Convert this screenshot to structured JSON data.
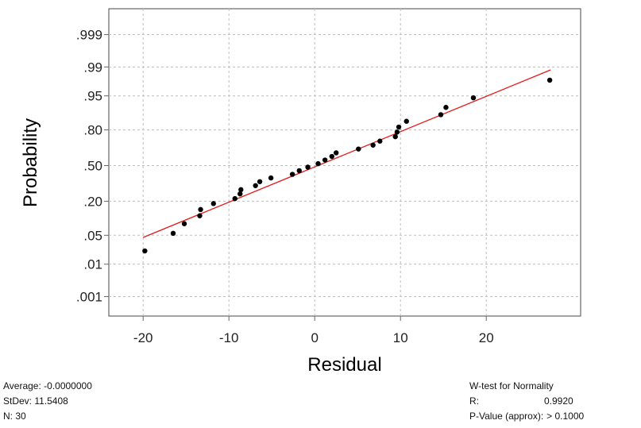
{
  "chart_data": {
    "type": "scatter",
    "title": "",
    "xlabel": "Residual",
    "ylabel": "Probability",
    "xlim": [
      -24,
      31
    ],
    "xticks": [
      -20,
      -10,
      0,
      10,
      20
    ],
    "xtick_labels": [
      "-20",
      "-10",
      "0",
      "10",
      "20"
    ],
    "y_scale": "normal-probability",
    "yticks": [
      0.001,
      0.01,
      0.05,
      0.2,
      0.5,
      0.8,
      0.95,
      0.99,
      0.999
    ],
    "ytick_labels": [
      ".001",
      ".01",
      ".05",
      ".20",
      ".50",
      ".80",
      ".95",
      ".99",
      ".999"
    ],
    "grid": true,
    "line_color": "#e41a1c",
    "point_color": "#000000",
    "fit_line": {
      "x": [
        -20,
        27.5
      ],
      "y": [
        0.045,
        0.988
      ]
    },
    "points": [
      {
        "x": -19.8,
        "y": 0.022
      },
      {
        "x": -16.5,
        "y": 0.055
      },
      {
        "x": -15.2,
        "y": 0.085
      },
      {
        "x": -13.4,
        "y": 0.118
      },
      {
        "x": -13.3,
        "y": 0.15
      },
      {
        "x": -11.8,
        "y": 0.185
      },
      {
        "x": -9.3,
        "y": 0.218
      },
      {
        "x": -8.7,
        "y": 0.252
      },
      {
        "x": -8.6,
        "y": 0.285
      },
      {
        "x": -6.9,
        "y": 0.318
      },
      {
        "x": -6.4,
        "y": 0.352
      },
      {
        "x": -5.1,
        "y": 0.385
      },
      {
        "x": -2.6,
        "y": 0.418
      },
      {
        "x": -1.8,
        "y": 0.452
      },
      {
        "x": -0.8,
        "y": 0.485
      },
      {
        "x": 0.4,
        "y": 0.518
      },
      {
        "x": 1.2,
        "y": 0.552
      },
      {
        "x": 2.0,
        "y": 0.585
      },
      {
        "x": 2.5,
        "y": 0.618
      },
      {
        "x": 5.1,
        "y": 0.652
      },
      {
        "x": 6.8,
        "y": 0.685
      },
      {
        "x": 7.6,
        "y": 0.718
      },
      {
        "x": 9.4,
        "y": 0.752
      },
      {
        "x": 9.6,
        "y": 0.785
      },
      {
        "x": 9.8,
        "y": 0.818
      },
      {
        "x": 10.7,
        "y": 0.852
      },
      {
        "x": 14.7,
        "y": 0.885
      },
      {
        "x": 15.3,
        "y": 0.915
      },
      {
        "x": 18.5,
        "y": 0.945
      },
      {
        "x": 27.4,
        "y": 0.978
      }
    ]
  },
  "stats_left": {
    "average": "Average: -0.0000000",
    "stdev": "StDev: 11.5408",
    "n": "N: 30"
  },
  "stats_right": {
    "title": "W-test for Normality",
    "r_label": "R:",
    "r_value": "0.9920",
    "p_label": "P-Value (approx):",
    "p_value": "> 0.1000"
  }
}
